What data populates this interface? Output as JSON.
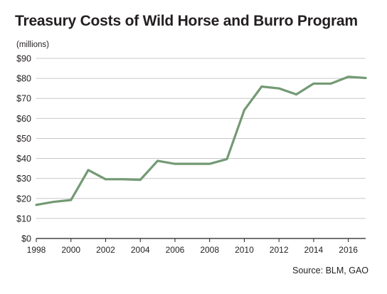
{
  "chart_data": {
    "type": "line",
    "title": "Treasury Costs of Wild Horse and Burro Program",
    "ylabel": "(millions)",
    "source": "Source: BLM, GAO",
    "x": [
      1998,
      1999,
      2000,
      2001,
      2002,
      2003,
      2004,
      2005,
      2006,
      2007,
      2008,
      2009,
      2010,
      2011,
      2012,
      2013,
      2014,
      2015,
      2016,
      2017
    ],
    "series": [
      {
        "values": [
          16.8,
          18.3,
          19.2,
          34.2,
          29.6,
          29.6,
          29.3,
          38.8,
          37.3,
          37.3,
          37.3,
          39.7,
          64.2,
          75.9,
          75.0,
          72.0,
          77.4,
          77.4,
          80.8,
          80.2
        ]
      }
    ],
    "xticks": [
      "1998",
      "2000",
      "2002",
      "2004",
      "2006",
      "2008",
      "2010",
      "2012",
      "2014",
      "2016"
    ],
    "yticks": [
      "$0",
      "$10",
      "$20",
      "$30",
      "$40",
      "$50",
      "$60",
      "$70",
      "$80",
      "$90"
    ],
    "ylim": [
      0,
      90
    ],
    "xlim": [
      1998,
      2017
    ],
    "grid": true,
    "line_color": "#739a74",
    "grid_color": "#c8c8c8"
  }
}
